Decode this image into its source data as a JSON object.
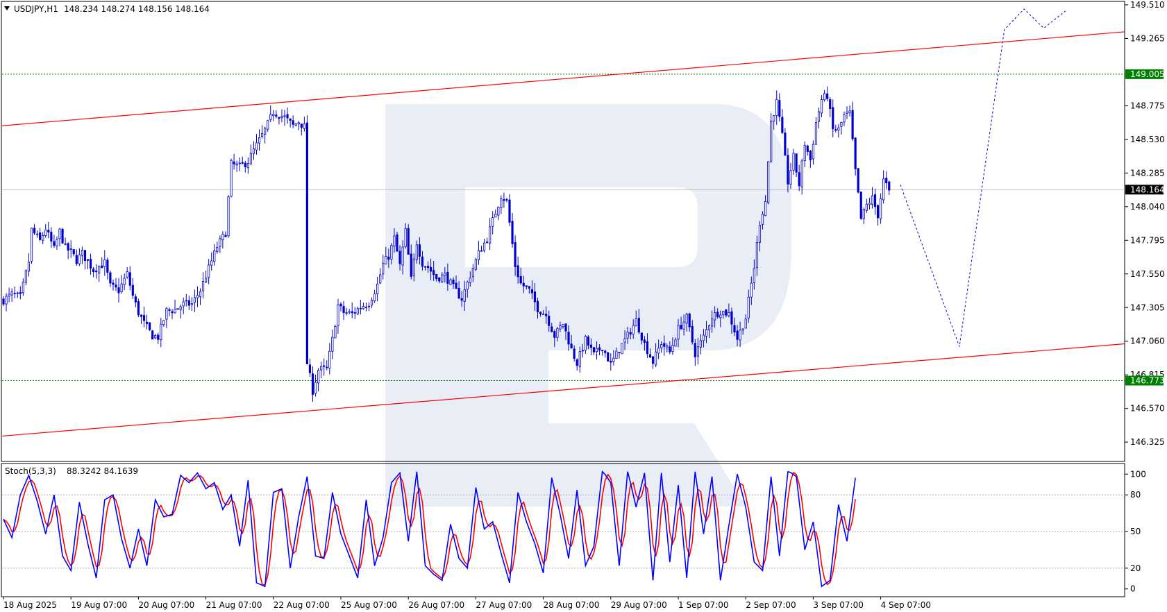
{
  "header": {
    "symbol": "USDJPY,H1",
    "ohlc": "148.234 148.274 148.156 148.164"
  },
  "indicator": {
    "name": "Stoch(5,3,3)",
    "values": "88.3242 84.1639",
    "levels": [
      "100",
      "80",
      "50",
      "20",
      "0"
    ]
  },
  "price_axis": {
    "ticks": [
      "149.510",
      "149.265",
      "149.005",
      "148.775",
      "148.530",
      "148.285",
      "148.164",
      "148.040",
      "147.795",
      "147.550",
      "147.305",
      "147.060",
      "146.815",
      "146.773",
      "146.570",
      "146.325"
    ],
    "tick_values": [
      149.51,
      149.265,
      149.02,
      148.775,
      148.53,
      148.285,
      148.04,
      147.795,
      147.55,
      147.305,
      147.06,
      146.815,
      146.57,
      146.325
    ],
    "badge_values": [
      149.005,
      148.164,
      146.773
    ]
  },
  "time_axis": {
    "labels": [
      "18 Aug 2025",
      "19 Aug 07:00",
      "20 Aug 07:00",
      "21 Aug 07:00",
      "22 Aug 07:00",
      "25 Aug 07:00",
      "26 Aug 07:00",
      "27 Aug 07:00",
      "28 Aug 07:00",
      "29 Aug 07:00",
      "1 Sep 07:00",
      "2 Sep 07:00",
      "3 Sep 07:00",
      "4 Sep 07:00"
    ],
    "label_positions": [
      0,
      24,
      48,
      72,
      96,
      120,
      144,
      168,
      192,
      216,
      240,
      264,
      288,
      312
    ]
  },
  "colors": {
    "candle": "#0000cc",
    "channel": "#ff0000",
    "level_line": "#008000",
    "badge_green": "#008000",
    "badge_black": "#000000",
    "stoch_main": "#0000ff",
    "stoch_signal": "#ff0000",
    "forecast": "#0000cc",
    "watermark": "#e8ecf4"
  },
  "chart_data": {
    "type": "candlestick",
    "price_range": [
      146.22,
      149.57
    ],
    "bar_count": 316,
    "close_anchors": [
      [
        0,
        147.36
      ],
      [
        3,
        147.4
      ],
      [
        6,
        147.38
      ],
      [
        9,
        147.64
      ],
      [
        10,
        147.87
      ],
      [
        13,
        147.79
      ],
      [
        15,
        147.88
      ],
      [
        18,
        147.73
      ],
      [
        20,
        147.86
      ],
      [
        22,
        147.74
      ],
      [
        24,
        147.71
      ],
      [
        26,
        147.65
      ],
      [
        28,
        147.7
      ],
      [
        32,
        147.58
      ],
      [
        36,
        147.63
      ],
      [
        38,
        147.46
      ],
      [
        41,
        147.43
      ],
      [
        44,
        147.55
      ],
      [
        46,
        147.39
      ],
      [
        48,
        147.27
      ],
      [
        50,
        147.19
      ],
      [
        53,
        147.1
      ],
      [
        55,
        147.09
      ],
      [
        58,
        147.28
      ],
      [
        61,
        147.29
      ],
      [
        64,
        147.33
      ],
      [
        67,
        147.33
      ],
      [
        70,
        147.43
      ],
      [
        73,
        147.59
      ],
      [
        76,
        147.75
      ],
      [
        79,
        147.85
      ],
      [
        81,
        148.35
      ],
      [
        84,
        148.33
      ],
      [
        87,
        148.37
      ],
      [
        89,
        148.45
      ],
      [
        92,
        148.56
      ],
      [
        94,
        148.64
      ],
      [
        96,
        148.73
      ],
      [
        100,
        148.69
      ],
      [
        103,
        148.63
      ],
      [
        105,
        148.66
      ],
      [
        107,
        148.62
      ],
      [
        108,
        146.9
      ],
      [
        110,
        146.7
      ],
      [
        112,
        146.85
      ],
      [
        115,
        146.86
      ],
      [
        117,
        147.07
      ],
      [
        119,
        147.32
      ],
      [
        121,
        147.27
      ],
      [
        124,
        147.26
      ],
      [
        127,
        147.31
      ],
      [
        130,
        147.34
      ],
      [
        133,
        147.47
      ],
      [
        135,
        147.62
      ],
      [
        137,
        147.68
      ],
      [
        139,
        147.81
      ],
      [
        141,
        147.61
      ],
      [
        143,
        147.86
      ],
      [
        145,
        147.51
      ],
      [
        147,
        147.78
      ],
      [
        149,
        147.63
      ],
      [
        151,
        147.6
      ],
      [
        154,
        147.52
      ],
      [
        157,
        147.54
      ],
      [
        160,
        147.45
      ],
      [
        163,
        147.37
      ],
      [
        166,
        147.54
      ],
      [
        169,
        147.7
      ],
      [
        172,
        147.81
      ],
      [
        175,
        148.0
      ],
      [
        177,
        148.12
      ],
      [
        179,
        148.08
      ],
      [
        182,
        147.61
      ],
      [
        184,
        147.48
      ],
      [
        187,
        147.43
      ],
      [
        190,
        147.3
      ],
      [
        193,
        147.25
      ],
      [
        196,
        147.1
      ],
      [
        199,
        147.19
      ],
      [
        202,
        147.0
      ],
      [
        204,
        146.9
      ],
      [
        207,
        147.07
      ],
      [
        210,
        146.96
      ],
      [
        213,
        147.02
      ],
      [
        216,
        146.89
      ],
      [
        219,
        147.0
      ],
      [
        222,
        147.1
      ],
      [
        225,
        147.21
      ],
      [
        228,
        147.04
      ],
      [
        231,
        146.91
      ],
      [
        234,
        147.05
      ],
      [
        237,
        146.98
      ],
      [
        240,
        147.15
      ],
      [
        243,
        147.23
      ],
      [
        246,
        146.97
      ],
      [
        249,
        147.09
      ],
      [
        252,
        147.24
      ],
      [
        255,
        147.28
      ],
      [
        258,
        147.26
      ],
      [
        261,
        147.08
      ],
      [
        264,
        147.23
      ],
      [
        267,
        147.6
      ],
      [
        269,
        147.93
      ],
      [
        271,
        148.08
      ],
      [
        273,
        148.66
      ],
      [
        275,
        148.8
      ],
      [
        277,
        148.55
      ],
      [
        279,
        148.22
      ],
      [
        281,
        148.4
      ],
      [
        283,
        148.2
      ],
      [
        285,
        148.5
      ],
      [
        287,
        148.38
      ],
      [
        289,
        148.65
      ],
      [
        291,
        148.82
      ],
      [
        293,
        148.85
      ],
      [
        295,
        148.6
      ],
      [
        297,
        148.6
      ],
      [
        299,
        148.7
      ],
      [
        301,
        148.72
      ],
      [
        303,
        148.3
      ],
      [
        305,
        147.95
      ],
      [
        307,
        148.05
      ],
      [
        309,
        148.1
      ],
      [
        311,
        147.98
      ],
      [
        313,
        148.23
      ],
      [
        315,
        148.16
      ]
    ],
    "channel_upper": [
      [
        0,
        148.63
      ],
      [
        315,
        149.17
      ]
    ],
    "channel_lower": [
      [
        0,
        146.37
      ],
      [
        315,
        146.9
      ]
    ],
    "levels": [
      149.005,
      146.773
    ],
    "current_price": 148.164,
    "forecast_path": [
      [
        319,
        148.2
      ],
      [
        340,
        147.02
      ],
      [
        356,
        149.33
      ],
      [
        363,
        149.48
      ],
      [
        370,
        149.34
      ],
      [
        378,
        149.47
      ]
    ],
    "stochastic": {
      "levels": [
        80,
        50,
        20
      ],
      "range": [
        0,
        100
      ],
      "main_anchors": [
        [
          0,
          60
        ],
        [
          3,
          45
        ],
        [
          6,
          80
        ],
        [
          9,
          96
        ],
        [
          12,
          75
        ],
        [
          15,
          48
        ],
        [
          18,
          80
        ],
        [
          21,
          30
        ],
        [
          24,
          18
        ],
        [
          27,
          74
        ],
        [
          30,
          40
        ],
        [
          33,
          12
        ],
        [
          36,
          76
        ],
        [
          39,
          80
        ],
        [
          42,
          44
        ],
        [
          45,
          20
        ],
        [
          48,
          52
        ],
        [
          51,
          22
        ],
        [
          54,
          76
        ],
        [
          57,
          62
        ],
        [
          60,
          64
        ],
        [
          63,
          96
        ],
        [
          66,
          90
        ],
        [
          69,
          98
        ],
        [
          72,
          85
        ],
        [
          75,
          90
        ],
        [
          78,
          68
        ],
        [
          81,
          80
        ],
        [
          84,
          38
        ],
        [
          87,
          92
        ],
        [
          90,
          8
        ],
        [
          93,
          5
        ],
        [
          96,
          82
        ],
        [
          99,
          85
        ],
        [
          102,
          20
        ],
        [
          105,
          62
        ],
        [
          108,
          95
        ],
        [
          111,
          30
        ],
        [
          114,
          28
        ],
        [
          117,
          82
        ],
        [
          120,
          48
        ],
        [
          123,
          30
        ],
        [
          126,
          12
        ],
        [
          129,
          76
        ],
        [
          132,
          22
        ],
        [
          135,
          45
        ],
        [
          138,
          90
        ],
        [
          141,
          98
        ],
        [
          144,
          42
        ],
        [
          147,
          100
        ],
        [
          150,
          22
        ],
        [
          153,
          15
        ],
        [
          156,
          10
        ],
        [
          159,
          56
        ],
        [
          162,
          28
        ],
        [
          165,
          20
        ],
        [
          168,
          86
        ],
        [
          171,
          52
        ],
        [
          174,
          58
        ],
        [
          177,
          32
        ],
        [
          180,
          8
        ],
        [
          183,
          82
        ],
        [
          186,
          58
        ],
        [
          189,
          40
        ],
        [
          192,
          16
        ],
        [
          195,
          94
        ],
        [
          198,
          64
        ],
        [
          201,
          28
        ],
        [
          204,
          84
        ],
        [
          207,
          22
        ],
        [
          210,
          38
        ],
        [
          213,
          100
        ],
        [
          216,
          90
        ],
        [
          219,
          22
        ],
        [
          222,
          100
        ],
        [
          225,
          70
        ],
        [
          228,
          98
        ],
        [
          231,
          10
        ],
        [
          234,
          98
        ],
        [
          237,
          25
        ],
        [
          240,
          88
        ],
        [
          243,
          12
        ],
        [
          246,
          100
        ],
        [
          249,
          48
        ],
        [
          252,
          95
        ],
        [
          255,
          10
        ],
        [
          258,
          55
        ],
        [
          261,
          97
        ],
        [
          264,
          70
        ],
        [
          267,
          25
        ],
        [
          270,
          18
        ],
        [
          273,
          95
        ],
        [
          276,
          30
        ],
        [
          279,
          100
        ],
        [
          282,
          95
        ],
        [
          285,
          35
        ],
        [
          288,
          58
        ],
        [
          291,
          5
        ],
        [
          294,
          10
        ],
        [
          297,
          72
        ],
        [
          300,
          42
        ],
        [
          303,
          94
        ]
      ]
    }
  }
}
